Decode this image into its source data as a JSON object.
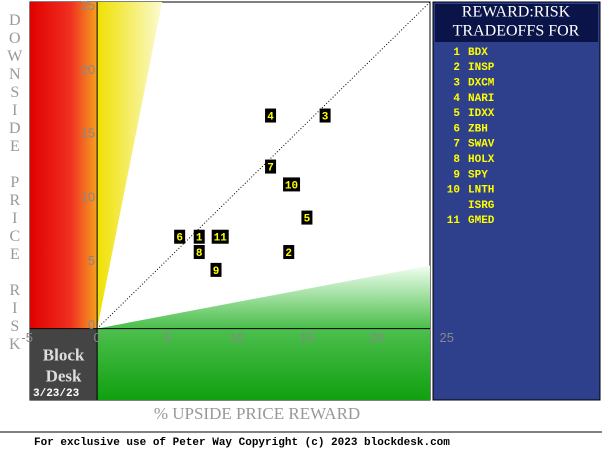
{
  "chart_data": {
    "type": "scatter",
    "title_lines": [
      "REWARD:RISK",
      "TRADEOFFS FOR"
    ],
    "x_label": "% UPSIDE PRICE REWARD",
    "y_label": "% DOWNSIDE PRICE RISK",
    "xlim": [
      -4.8,
      23.8
    ],
    "ylim": [
      -5.6,
      25.6
    ],
    "xticks": [
      -5,
      0,
      5,
      10,
      15,
      20,
      25
    ],
    "yticks": [
      0,
      5,
      10,
      15,
      20,
      25
    ],
    "points": {
      "labels": [
        "1",
        "2",
        "3",
        "4",
        "5",
        "6",
        "7",
        "8",
        "9",
        "10",
        "11"
      ],
      "x": [
        7.3,
        13.7,
        16.3,
        12.4,
        15.0,
        5.9,
        12.4,
        7.3,
        8.5,
        13.9,
        8.8
      ],
      "y": [
        7.2,
        6.0,
        16.7,
        16.7,
        8.7,
        7.2,
        12.7,
        6.0,
        4.6,
        11.3,
        7.2
      ]
    },
    "legend": [
      {
        "num": "1",
        "ticker": "BDX"
      },
      {
        "num": "2",
        "ticker": "INSP"
      },
      {
        "num": "3",
        "ticker": "DXCM"
      },
      {
        "num": "4",
        "ticker": "NARI"
      },
      {
        "num": "5",
        "ticker": "IDXX"
      },
      {
        "num": "6",
        "ticker": "ZBH"
      },
      {
        "num": "7",
        "ticker": "SWAV"
      },
      {
        "num": "8",
        "ticker": "HOLX"
      },
      {
        "num": "9",
        "ticker": "SPY"
      },
      {
        "num": "10",
        "ticker": "LNTH"
      },
      {
        "num": null,
        "ticker": "ISRG"
      },
      {
        "num": "11",
        "ticker": "GMED"
      }
    ],
    "brand": [
      "Block",
      "Desk"
    ],
    "date": "3/23/23",
    "footer": "For exclusive use of Peter Way Copyright (c) 2023 blockdesk.com"
  }
}
